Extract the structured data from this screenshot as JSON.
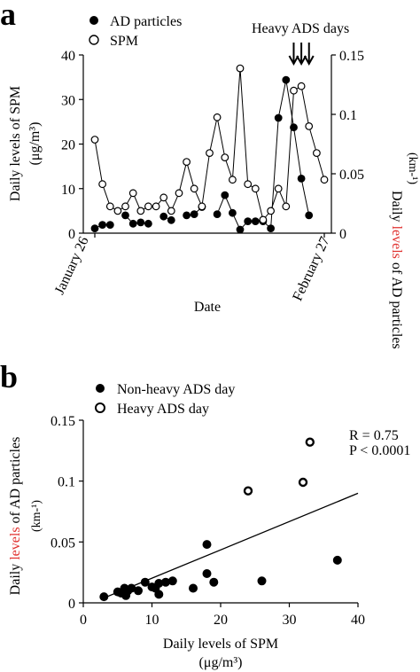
{
  "chart_data": [
    {
      "panel_label": "a",
      "type": "line",
      "xlabel": "Date",
      "x_tick_labels": [
        "January 26",
        "February 27"
      ],
      "x": [
        1,
        2,
        3,
        4,
        5,
        6,
        7,
        8,
        9,
        10,
        11,
        12,
        13,
        14,
        15,
        16,
        17,
        18,
        19,
        20,
        21,
        22,
        23,
        24,
        25,
        26,
        27,
        28,
        29,
        30,
        31
      ],
      "ylabel_left": "Daily levels of SPM (μg/m³)",
      "ylabel_left_lines": [
        "Daily levels of SPM",
        "(μg/m³)"
      ],
      "ylim_left": [
        0,
        40
      ],
      "yticks_left": [
        "0",
        "10",
        "20",
        "30",
        "40"
      ],
      "ylabel_right": "Daily levels of AD particles (km⁻¹)",
      "ylabel_right_parts": {
        "before": "Daily ",
        "highlight": "levels",
        "after": " of AD particles",
        "unit": "(km-¹)"
      },
      "ylim_right": [
        0,
        0.15
      ],
      "yticks_right": [
        "0",
        "0.05",
        "0.1",
        "0.15"
      ],
      "legend": [
        "AD particles",
        "SPM"
      ],
      "annotation": "Heavy ADS days",
      "heavy_ads_day_x": [
        27,
        28,
        29
      ],
      "series": [
        {
          "name": "AD particles",
          "axis": "right",
          "marker": "filled",
          "values": [
            0.004,
            0.007,
            0.007,
            null,
            0.015,
            0.008,
            0.009,
            0.008,
            null,
            0.014,
            0.011,
            null,
            0.015,
            0.016,
            0.022,
            null,
            0.016,
            0.032,
            0.017,
            0.003,
            0.01,
            0.01,
            0.01,
            0.004,
            0.097,
            0.129,
            0.089,
            0.046,
            0.015,
            null,
            null
          ]
        },
        {
          "name": "SPM",
          "axis": "left",
          "marker": "open",
          "values": [
            21,
            11,
            6,
            5,
            6,
            9,
            5,
            6,
            6,
            8,
            5,
            9,
            16,
            10,
            6,
            18,
            26,
            17,
            12,
            37,
            11,
            10,
            3,
            5,
            10,
            6,
            32,
            33,
            24,
            18,
            12
          ]
        }
      ]
    },
    {
      "panel_label": "b",
      "type": "scatter",
      "xlabel": "Daily levels of SPM (μg/m³)",
      "xlabel_lines": [
        "Daily levels of SPM",
        "(μg/m³)"
      ],
      "xlim": [
        0,
        40
      ],
      "xticks": [
        "0",
        "10",
        "20",
        "30",
        "40"
      ],
      "ylabel": "Daily levels of AD particles (km⁻¹)",
      "ylabel_parts": {
        "before": "Daily ",
        "highlight": "levels",
        "after": " of AD particles",
        "unit": "(km-¹)"
      },
      "ylim": [
        0,
        0.15
      ],
      "yticks": [
        "0",
        "0.05",
        "0.1",
        "0.15"
      ],
      "legend": [
        "Non-heavy ADS day",
        "Heavy ADS day"
      ],
      "stats": [
        "R = 0.75",
        "P < 0.0001"
      ],
      "series": [
        {
          "name": "Non-heavy ADS day",
          "marker": "filled",
          "points": [
            [
              3,
              0.005
            ],
            [
              5,
              0.009
            ],
            [
              5.5,
              0.008
            ],
            [
              6,
              0.012
            ],
            [
              6.2,
              0.006
            ],
            [
              6.5,
              0.01
            ],
            [
              7,
              0.012
            ],
            [
              8,
              0.01
            ],
            [
              9,
              0.017
            ],
            [
              10,
              0.013
            ],
            [
              10.5,
              0.012
            ],
            [
              11,
              0.007
            ],
            [
              11,
              0.016
            ],
            [
              12,
              0.017
            ],
            [
              13,
              0.018
            ],
            [
              16,
              0.012
            ],
            [
              18,
              0.048
            ],
            [
              18,
              0.024
            ],
            [
              19,
              0.017
            ],
            [
              26,
              0.018
            ],
            [
              37,
              0.035
            ]
          ]
        },
        {
          "name": "Heavy ADS day",
          "marker": "open",
          "points": [
            [
              24,
              0.092
            ],
            [
              32,
              0.099
            ],
            [
              33,
              0.132
            ]
          ]
        }
      ],
      "regression_line": {
        "x": [
          3,
          40
        ],
        "y": [
          0.004,
          0.09
        ]
      }
    }
  ],
  "colors": {
    "highlight_word": "#e0312f",
    "ink": "#000000",
    "marker_open_fill": "#ffffff"
  }
}
